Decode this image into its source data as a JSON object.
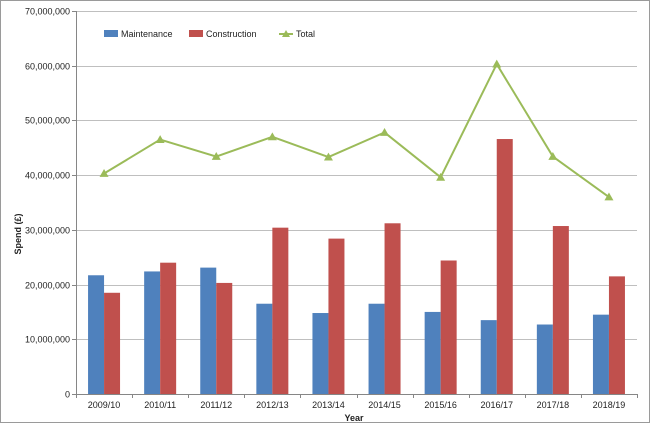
{
  "chart_data": {
    "type": "bar",
    "title": "",
    "xlabel": "Year",
    "ylabel": "Spend (£)",
    "categories": [
      "2009/10",
      "2010/11",
      "2011/12",
      "2012/13",
      "2013/14",
      "2014/15",
      "2015/16",
      "2016/17",
      "2017/18",
      "2018/19"
    ],
    "ylim": [
      0,
      70000000
    ],
    "yticks": [
      0,
      10000000,
      20000000,
      30000000,
      40000000,
      50000000,
      60000000,
      70000000
    ],
    "ytick_labels": [
      "0",
      "10,000,000",
      "20,000,000",
      "30,000,000",
      "40,000,000",
      "50,000,000",
      "60,000,000",
      "70,000,000"
    ],
    "grid": "horizontal",
    "legend_position": "top-left",
    "series": [
      {
        "name": "Maintenance",
        "kind": "bar",
        "color": "#4f81bd",
        "values": [
          21700000,
          22400000,
          23100000,
          16500000,
          14800000,
          16500000,
          15000000,
          13500000,
          12700000,
          14500000
        ]
      },
      {
        "name": "Construction",
        "kind": "bar",
        "color": "#c0504d",
        "values": [
          18500000,
          24000000,
          20300000,
          30400000,
          28400000,
          31200000,
          24400000,
          46600000,
          30700000,
          21500000
        ]
      },
      {
        "name": "Total",
        "kind": "line",
        "marker": "triangle",
        "color": "#9bbb59",
        "values": [
          40300000,
          46500000,
          43400000,
          47000000,
          43300000,
          47800000,
          39600000,
          60300000,
          43400000,
          36000000
        ]
      }
    ]
  }
}
